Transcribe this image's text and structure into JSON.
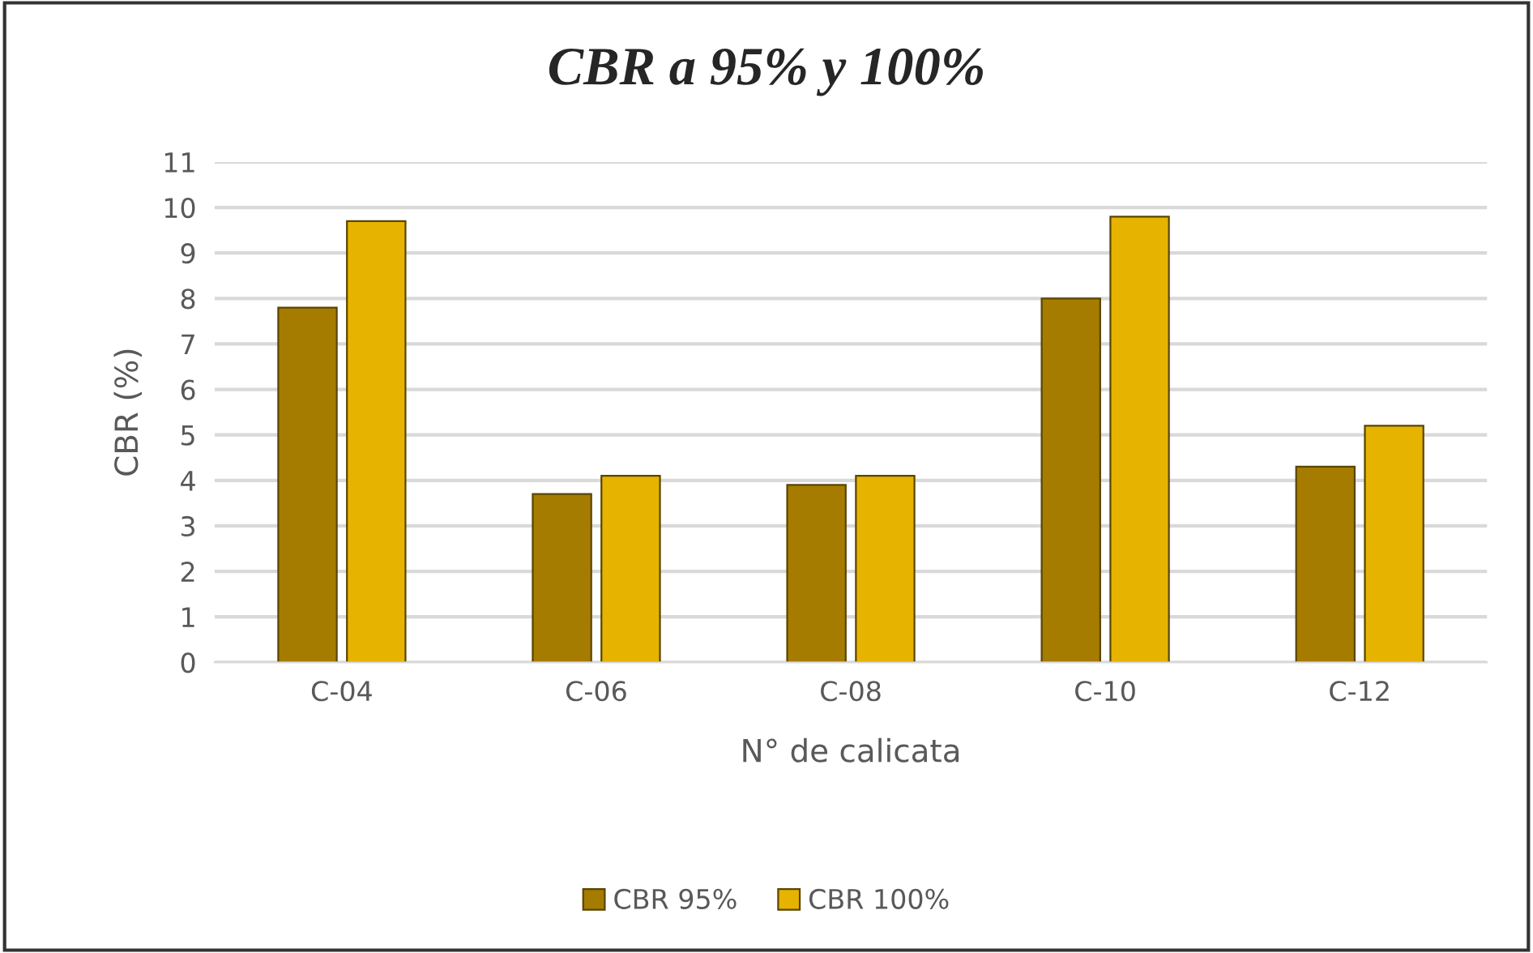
{
  "chart_data": {
    "type": "bar",
    "title": "CBR a 95% y 100%",
    "xlabel": "N° de calicata",
    "ylabel": "CBR (%)",
    "categories": [
      "C-04",
      "C-06",
      "C-08",
      "C-10",
      "C-12"
    ],
    "series": [
      {
        "name": "CBR 95%",
        "color": "#a67c00",
        "values": [
          7.8,
          3.7,
          3.9,
          8.0,
          4.3
        ]
      },
      {
        "name": "CBR 100%",
        "color": "#e6b400",
        "values": [
          9.7,
          4.1,
          4.1,
          9.8,
          5.2
        ]
      }
    ],
    "ylim": [
      0,
      11
    ],
    "yticks": [
      0,
      1,
      2,
      3,
      4,
      5,
      6,
      7,
      8,
      9,
      10,
      11
    ],
    "grid": "y",
    "legend": "bottom"
  }
}
